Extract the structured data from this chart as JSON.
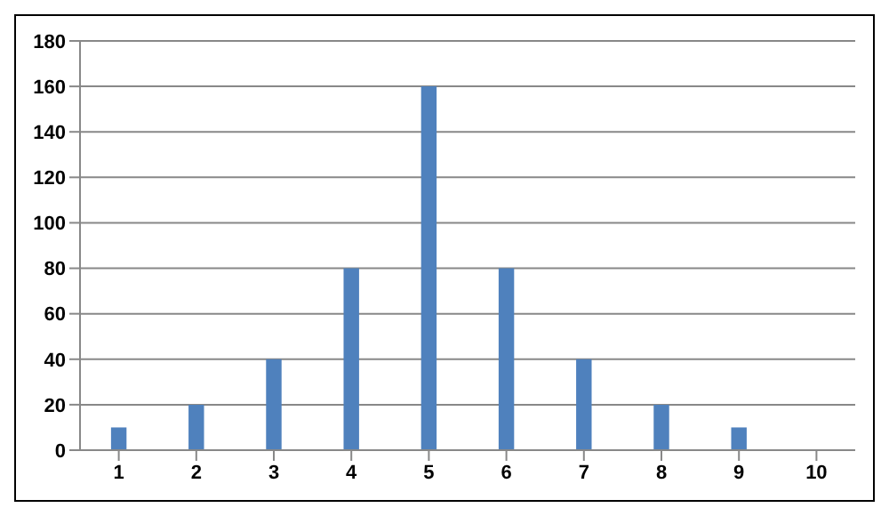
{
  "chart_data": {
    "type": "bar",
    "categories": [
      "1",
      "2",
      "3",
      "4",
      "5",
      "6",
      "7",
      "8",
      "9",
      "10"
    ],
    "values": [
      10,
      20,
      40,
      80,
      160,
      80,
      40,
      20,
      10,
      0
    ],
    "color": "#4f81bd",
    "ylim": [
      0,
      180
    ],
    "yticks": [
      0,
      20,
      40,
      60,
      80,
      100,
      120,
      140,
      160,
      180
    ],
    "grid": "y"
  }
}
